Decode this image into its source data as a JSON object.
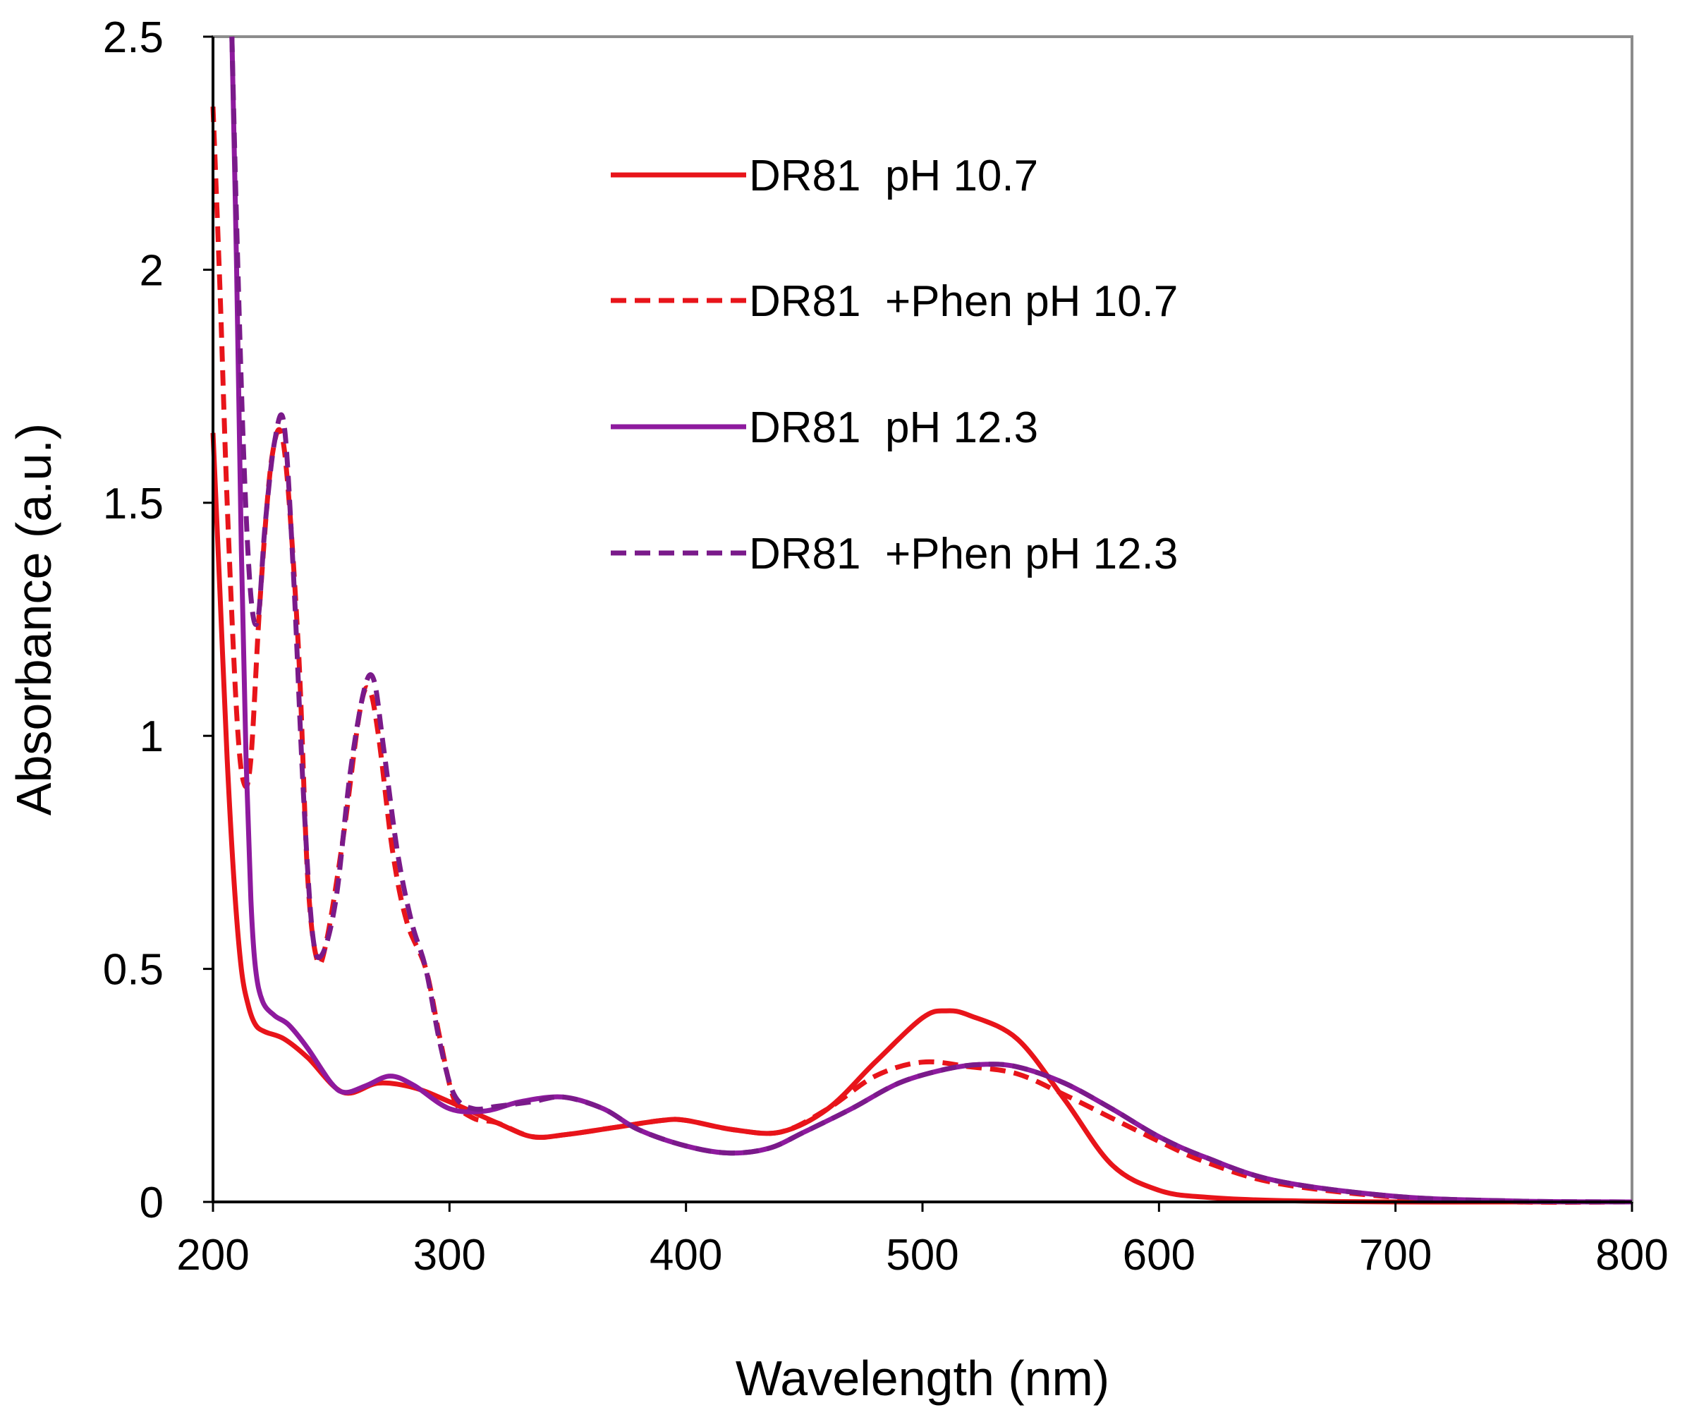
{
  "chart_data": {
    "type": "line",
    "title": "",
    "xlabel": "Wavelength (nm)",
    "ylabel": "Absorbance (a.u.)",
    "xlim": [
      200,
      800
    ],
    "ylim": [
      0,
      2.5
    ],
    "xticks": [
      "200",
      "300",
      "400",
      "500",
      "600",
      "700",
      "800"
    ],
    "yticks": [
      "0",
      "0.5",
      "1",
      "1.5",
      "2",
      "2.5"
    ],
    "grid": false,
    "legend_position": "top-center",
    "series": [
      {
        "name": "DR81  pH 10.7",
        "color": "#e8141a",
        "dash": "solid",
        "x": [
          200,
          203,
          206,
          209,
          212,
          215,
          218,
          222,
          230,
          240,
          255,
          270,
          285,
          300,
          320,
          335,
          350,
          370,
          390,
          400,
          420,
          440,
          460,
          480,
          500,
          510,
          520,
          540,
          560,
          580,
          600,
          620,
          650,
          700,
          750,
          800
        ],
        "y": [
          1.65,
          1.3,
          0.95,
          0.68,
          0.5,
          0.42,
          0.38,
          0.365,
          0.35,
          0.31,
          0.235,
          0.255,
          0.245,
          0.215,
          0.17,
          0.14,
          0.145,
          0.16,
          0.175,
          0.175,
          0.155,
          0.15,
          0.2,
          0.3,
          0.395,
          0.41,
          0.4,
          0.35,
          0.22,
          0.08,
          0.025,
          0.01,
          0.003,
          0.0,
          0.0,
          0.0
        ]
      },
      {
        "name": "DR81  +Phen pH 10.7",
        "color": "#e8141a",
        "dash": "dashed",
        "x": [
          200,
          203,
          206,
          210,
          213,
          216,
          220,
          225,
          230,
          236,
          240,
          244,
          248,
          255,
          262,
          266,
          270,
          276,
          282,
          290,
          296,
          302,
          310,
          320,
          335,
          350,
          370,
          390,
          400,
          420,
          440,
          460,
          480,
          500,
          520,
          540,
          560,
          580,
          600,
          620,
          650,
          700,
          750,
          800
        ],
        "y": [
          2.35,
          1.95,
          1.5,
          1.05,
          0.9,
          0.95,
          1.3,
          1.6,
          1.62,
          1.2,
          0.7,
          0.52,
          0.56,
          0.78,
          1.05,
          1.1,
          1.0,
          0.75,
          0.6,
          0.5,
          0.35,
          0.22,
          0.18,
          0.17,
          0.14,
          0.145,
          0.16,
          0.175,
          0.175,
          0.155,
          0.15,
          0.2,
          0.27,
          0.3,
          0.29,
          0.275,
          0.23,
          0.18,
          0.13,
          0.085,
          0.04,
          0.01,
          0.0,
          0.0
        ]
      },
      {
        "name": "DR81  pH 12.3",
        "color": "#8e1a9e",
        "dash": "solid",
        "x": [
          208,
          210,
          212,
          214,
          216,
          218,
          221,
          226,
          232,
          240,
          250,
          256,
          265,
          275,
          285,
          300,
          315,
          330,
          348,
          365,
          380,
          400,
          418,
          435,
          450,
          470,
          490,
          510,
          525,
          540,
          560,
          580,
          600,
          620,
          650,
          700,
          750,
          800
        ],
        "y": [
          2.5,
          2.0,
          1.4,
          0.95,
          0.65,
          0.5,
          0.43,
          0.4,
          0.38,
          0.33,
          0.255,
          0.235,
          0.25,
          0.27,
          0.25,
          0.2,
          0.195,
          0.215,
          0.225,
          0.2,
          0.155,
          0.12,
          0.105,
          0.115,
          0.15,
          0.2,
          0.255,
          0.285,
          0.295,
          0.29,
          0.255,
          0.2,
          0.14,
          0.095,
          0.045,
          0.012,
          0.002,
          0.0
        ]
      },
      {
        "name": "DR81  +Phen pH 12.3",
        "color": "#7a1a8a",
        "dash": "dashed",
        "x": [
          208,
          210,
          213,
          216,
          219,
          222,
          226,
          230,
          234,
          238,
          242,
          246,
          252,
          258,
          264,
          268,
          272,
          278,
          284,
          290,
          296,
          302,
          310,
          320,
          335,
          348,
          365,
          380,
          400,
          418,
          435,
          450,
          470,
          490,
          510,
          525,
          540,
          560,
          580,
          600,
          620,
          650,
          700,
          750,
          800
        ],
        "y": [
          2.5,
          2.1,
          1.6,
          1.3,
          1.25,
          1.45,
          1.63,
          1.67,
          1.35,
          0.9,
          0.58,
          0.53,
          0.65,
          0.92,
          1.1,
          1.12,
          0.98,
          0.75,
          0.6,
          0.5,
          0.34,
          0.23,
          0.2,
          0.205,
          0.215,
          0.225,
          0.2,
          0.155,
          0.12,
          0.105,
          0.115,
          0.15,
          0.2,
          0.255,
          0.285,
          0.295,
          0.29,
          0.255,
          0.2,
          0.14,
          0.095,
          0.045,
          0.012,
          0.002,
          0.0
        ]
      }
    ]
  }
}
